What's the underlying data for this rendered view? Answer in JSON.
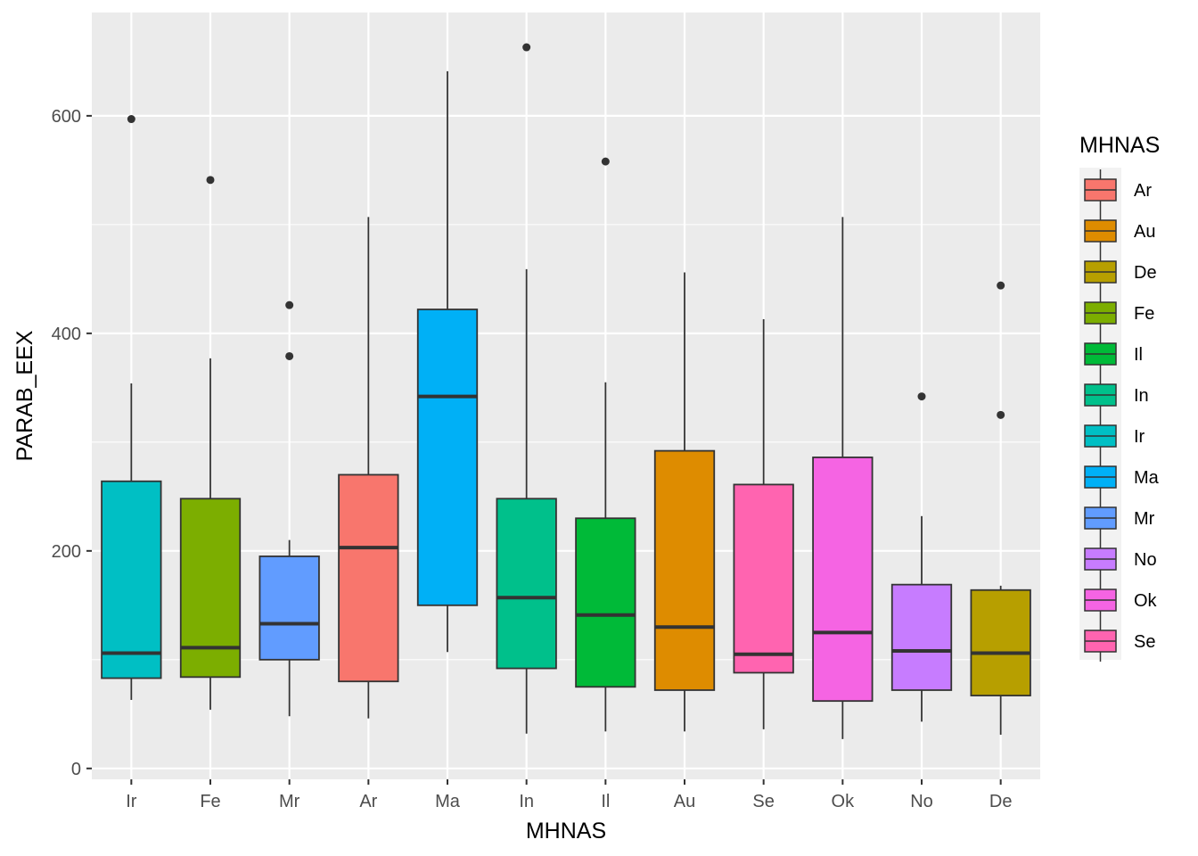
{
  "chart_data": {
    "type": "boxplot",
    "xlabel": "MHNAS",
    "ylabel": "PARAB_EEX",
    "ylim": [
      -10,
      695
    ],
    "yticks": [
      0,
      200,
      400,
      600
    ],
    "categories": [
      "Ir",
      "Fe",
      "Mr",
      "Ar",
      "Ma",
      "In",
      "Il",
      "Au",
      "Se",
      "Ok",
      "No",
      "De"
    ],
    "boxes": [
      {
        "category": "Ir",
        "whisker_low": 63,
        "q1": 83,
        "median": 106,
        "q3": 264,
        "whisker_high": 354,
        "outliers": [
          597
        ],
        "color": "#00BFC4"
      },
      {
        "category": "Fe",
        "whisker_low": 54,
        "q1": 84,
        "median": 111,
        "q3": 248,
        "whisker_high": 377,
        "outliers": [
          541
        ],
        "color": "#7CAE00"
      },
      {
        "category": "Mr",
        "whisker_low": 48,
        "q1": 100,
        "median": 133,
        "q3": 195,
        "whisker_high": 210,
        "outliers": [
          426,
          379
        ],
        "color": "#619CFF"
      },
      {
        "category": "Ar",
        "whisker_low": 46,
        "q1": 80,
        "median": 203,
        "q3": 270,
        "whisker_high": 507,
        "outliers": [],
        "color": "#F8766D"
      },
      {
        "category": "Ma",
        "whisker_low": 107,
        "q1": 150,
        "median": 342,
        "q3": 422,
        "whisker_high": 641,
        "outliers": [],
        "color": "#00B0F6"
      },
      {
        "category": "In",
        "whisker_low": 32,
        "q1": 92,
        "median": 157,
        "q3": 248,
        "whisker_high": 459,
        "outliers": [
          663
        ],
        "color": "#00C08B"
      },
      {
        "category": "Il",
        "whisker_low": 34,
        "q1": 75,
        "median": 141,
        "q3": 230,
        "whisker_high": 355,
        "outliers": [
          558
        ],
        "color": "#00BA38"
      },
      {
        "category": "Au",
        "whisker_low": 34,
        "q1": 72,
        "median": 130,
        "q3": 292,
        "whisker_high": 456,
        "outliers": [],
        "color": "#DE8C00"
      },
      {
        "category": "Se",
        "whisker_low": 36,
        "q1": 88,
        "median": 105,
        "q3": 261,
        "whisker_high": 413,
        "outliers": [],
        "color": "#FF64B0"
      },
      {
        "category": "Ok",
        "whisker_low": 27,
        "q1": 62,
        "median": 125,
        "q3": 286,
        "whisker_high": 507,
        "outliers": [],
        "color": "#F564E3"
      },
      {
        "category": "No",
        "whisker_low": 43,
        "q1": 72,
        "median": 108,
        "q3": 169,
        "whisker_high": 232,
        "outliers": [
          342
        ],
        "color": "#C77CFF"
      },
      {
        "category": "De",
        "whisker_low": 31,
        "q1": 67,
        "median": 106,
        "q3": 164,
        "whisker_high": 168,
        "outliers": [
          444,
          325
        ],
        "color": "#B79F00"
      }
    ],
    "legend": {
      "title": "MHNAS",
      "position": "right",
      "entries": [
        {
          "label": "Ar",
          "color": "#F8766D"
        },
        {
          "label": "Au",
          "color": "#DE8C00"
        },
        {
          "label": "De",
          "color": "#B79F00"
        },
        {
          "label": "Fe",
          "color": "#7CAE00"
        },
        {
          "label": "Il",
          "color": "#00BA38"
        },
        {
          "label": "In",
          "color": "#00C08B"
        },
        {
          "label": "Ir",
          "color": "#00BFC4"
        },
        {
          "label": "Ma",
          "color": "#00B0F6"
        },
        {
          "label": "Mr",
          "color": "#619CFF"
        },
        {
          "label": "No",
          "color": "#C77CFF"
        },
        {
          "label": "Ok",
          "color": "#F564E3"
        },
        {
          "label": "Se",
          "color": "#FF64B0"
        }
      ]
    }
  }
}
